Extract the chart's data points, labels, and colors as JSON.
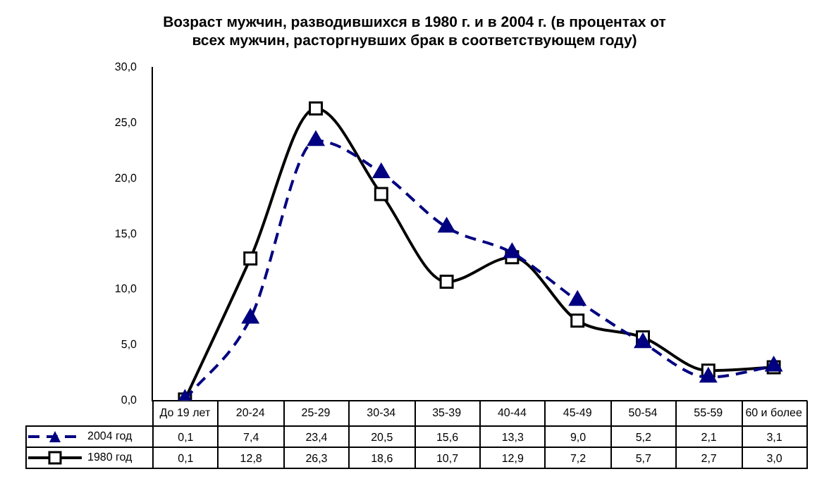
{
  "chart_data": {
    "type": "line",
    "title": "Возраст мужчин, разводившихся в 1980 г. и  в 2004 г. (в процентах от всех мужчин, расторгнувших брак в соответствующем году)",
    "categories": [
      "До 19 лет",
      "20-24",
      "25-29",
      "30-34",
      "35-39",
      "40-44",
      "45-49",
      "50-54",
      "55-59",
      "60 и более"
    ],
    "series": [
      {
        "name": "2004 год",
        "color": "#000080",
        "marker": "triangle",
        "line_style": "dashed",
        "values": [
          0.1,
          7.4,
          23.4,
          20.5,
          15.6,
          13.3,
          9.0,
          5.2,
          2.1,
          3.1
        ],
        "value_labels": [
          "0,1",
          "7,4",
          "23,4",
          "20,5",
          "15,6",
          "13,3",
          "9,0",
          "5,2",
          "2,1",
          "3,1"
        ]
      },
      {
        "name": "1980 год",
        "color": "#000000",
        "marker": "square",
        "line_style": "solid",
        "values": [
          0.1,
          12.8,
          26.3,
          18.6,
          10.7,
          12.9,
          7.2,
          5.7,
          2.7,
          3.0
        ],
        "value_labels": [
          "0,1",
          "12,8",
          "26,3",
          "18,6",
          "10,7",
          "12,9",
          "7,2",
          "5,7",
          "2,7",
          "3,0"
        ]
      }
    ],
    "ylim": [
      0,
      30
    ],
    "yticks": [
      {
        "value": 0,
        "label": "0,0"
      },
      {
        "value": 5,
        "label": "5,0"
      },
      {
        "value": 10,
        "label": "10,0"
      },
      {
        "value": 15,
        "label": "15,0"
      },
      {
        "value": 20,
        "label": "20,0"
      },
      {
        "value": 25,
        "label": "25,0"
      },
      {
        "value": 30,
        "label": "30,0"
      }
    ],
    "grid": false,
    "legend": "bottom"
  }
}
